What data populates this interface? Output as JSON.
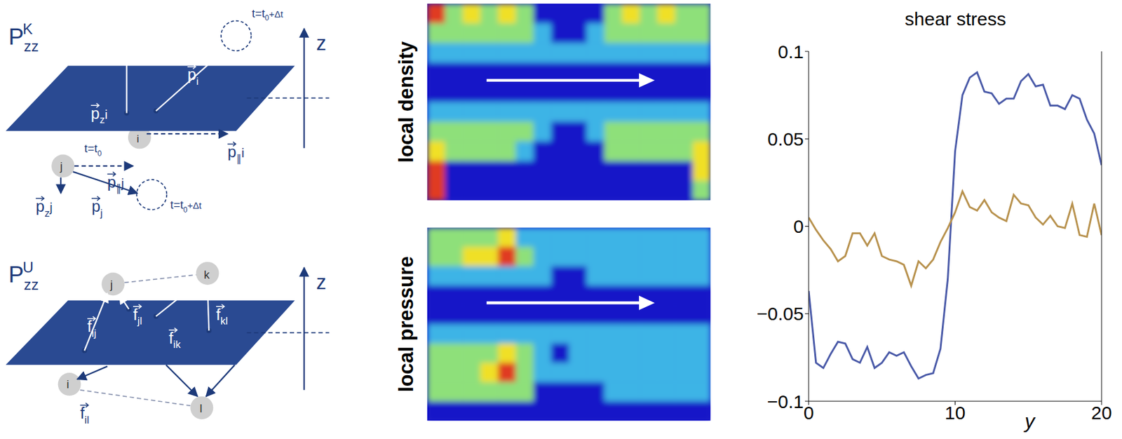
{
  "diagrams": [
    {
      "title": {
        "t": "P",
        "sup": "K",
        "sub": "zz"
      },
      "axis": "z",
      "labels": {
        "p_zi": {
          "t": "p",
          "sub": "z",
          "tail": "i"
        },
        "p_i": {
          "t": "p",
          "sub": "i"
        },
        "p_pi": {
          "t": "p",
          "sub": "∥",
          "tail": "i"
        },
        "p_pj": {
          "t": "p",
          "sub": "∥",
          "tail": "j"
        },
        "p_zj": {
          "t": "p",
          "sub": "z",
          "tail": "j"
        },
        "p_j": {
          "t": "p",
          "sub": "j"
        },
        "t0": {
          "t": "t=t",
          "sub": "0"
        },
        "t1i": {
          "t": "t=t",
          "sub": "0",
          "tail": "+Δt"
        },
        "t1j": {
          "t": "t=t",
          "sub": "0",
          "tail": "+Δt"
        },
        "i": {
          "t": "i"
        },
        "j": {
          "t": "j"
        }
      }
    },
    {
      "title": {
        "t": "P",
        "sup": "U",
        "sub": "zz"
      },
      "axis": "z",
      "labels": {
        "f_ij": {
          "t": "f",
          "sub": "ij"
        },
        "f_jl": {
          "t": "f",
          "sub": "jl"
        },
        "f_ik": {
          "t": "f",
          "sub": "ik"
        },
        "f_kl": {
          "t": "f",
          "sub": "kl"
        },
        "f_il": {
          "t": "f",
          "sub": "il"
        },
        "i": {
          "t": "i"
        },
        "j": {
          "t": "j"
        },
        "k": {
          "t": "k"
        },
        "l": {
          "t": "l"
        }
      }
    }
  ],
  "heatmap_colors": [
    "#1414c8",
    "#3cb4e6",
    "#8ee07a",
    "#f0e028",
    "#e03a20"
  ],
  "heatmaps": [
    {
      "label": "local density",
      "cells": [
        [
          4,
          2,
          3,
          2,
          3,
          2,
          0,
          0,
          0,
          0,
          2,
          3,
          2,
          3,
          2,
          2
        ],
        [
          2,
          2,
          2,
          2,
          2,
          2,
          1,
          0,
          0,
          1,
          2,
          2,
          2,
          2,
          2,
          2
        ],
        [
          1,
          1,
          1,
          1,
          1,
          1,
          1,
          1,
          1,
          1,
          1,
          1,
          1,
          1,
          1,
          1
        ],
        [
          0,
          0,
          0,
          0,
          0,
          0,
          0,
          0,
          0,
          0,
          0,
          0,
          0,
          0,
          0,
          0
        ],
        [
          0,
          0,
          0,
          0,
          0,
          0,
          0,
          0,
          0,
          0,
          0,
          0,
          0,
          0,
          0,
          0
        ],
        [
          1,
          1,
          1,
          1,
          1,
          1,
          1,
          1,
          1,
          1,
          1,
          1,
          1,
          1,
          1,
          1
        ],
        [
          2,
          2,
          2,
          2,
          2,
          2,
          1,
          0,
          0,
          1,
          2,
          2,
          2,
          2,
          2,
          2
        ],
        [
          3,
          2,
          2,
          2,
          2,
          1,
          0,
          0,
          0,
          0,
          2,
          2,
          2,
          2,
          2,
          3
        ],
        [
          4,
          0,
          0,
          0,
          0,
          0,
          0,
          0,
          0,
          0,
          0,
          0,
          0,
          0,
          0,
          3
        ],
        [
          4,
          0,
          0,
          0,
          0,
          0,
          0,
          0,
          0,
          0,
          0,
          0,
          0,
          0,
          0,
          2
        ]
      ]
    },
    {
      "label": "local pressure",
      "cells": [
        [
          2,
          2,
          2,
          2,
          3,
          1,
          1,
          1,
          1,
          1,
          1,
          1,
          1,
          1,
          1,
          1
        ],
        [
          2,
          2,
          3,
          3,
          4,
          2,
          1,
          1,
          1,
          1,
          1,
          1,
          1,
          1,
          1,
          1
        ],
        [
          1,
          1,
          1,
          1,
          1,
          1,
          1,
          0,
          0,
          1,
          1,
          1,
          1,
          1,
          1,
          1
        ],
        [
          0,
          0,
          0,
          0,
          0,
          0,
          0,
          0,
          0,
          0,
          0,
          0,
          0,
          0,
          0,
          0
        ],
        [
          0,
          0,
          0,
          0,
          0,
          0,
          0,
          0,
          0,
          0,
          0,
          0,
          0,
          0,
          0,
          0
        ],
        [
          1,
          1,
          1,
          1,
          1,
          1,
          1,
          1,
          1,
          1,
          1,
          1,
          1,
          1,
          1,
          1
        ],
        [
          2,
          2,
          2,
          2,
          3,
          2,
          1,
          0,
          1,
          1,
          1,
          1,
          1,
          1,
          1,
          1
        ],
        [
          2,
          2,
          2,
          3,
          4,
          2,
          1,
          1,
          1,
          1,
          1,
          1,
          1,
          1,
          1,
          1
        ],
        [
          2,
          2,
          2,
          2,
          2,
          2,
          0,
          0,
          0,
          0,
          1,
          1,
          1,
          1,
          1,
          1
        ],
        [
          0,
          0,
          0,
          0,
          0,
          0,
          0,
          0,
          0,
          0,
          0,
          0,
          0,
          0,
          0,
          0
        ]
      ]
    }
  ],
  "chart_data": {
    "type": "line",
    "title": "shear stress",
    "x_label": "y",
    "x": [
      0,
      0.5,
      1,
      1.5,
      2,
      2.5,
      3,
      3.5,
      4,
      4.5,
      5,
      5.5,
      6,
      6.5,
      7,
      7.5,
      8,
      8.5,
      9,
      9.5,
      10,
      10.5,
      11,
      11.5,
      12,
      12.5,
      13,
      13.5,
      14,
      14.5,
      15,
      15.5,
      16,
      16.5,
      17,
      17.5,
      18,
      18.5,
      19,
      19.5,
      20
    ],
    "series": [
      {
        "color": "#4a5aa8",
        "values": [
          -0.037,
          -0.078,
          -0.081,
          -0.073,
          -0.066,
          -0.067,
          -0.076,
          -0.078,
          -0.069,
          -0.081,
          -0.078,
          -0.072,
          -0.074,
          -0.072,
          -0.08,
          -0.087,
          -0.085,
          -0.084,
          -0.07,
          -0.03,
          0.043,
          0.075,
          0.085,
          0.088,
          0.077,
          0.076,
          0.07,
          0.073,
          0.073,
          0.083,
          0.087,
          0.08,
          0.081,
          0.069,
          0.069,
          0.067,
          0.075,
          0.073,
          0.061,
          0.053,
          0.035
        ]
      },
      {
        "color": "#b8924e",
        "values": [
          0.005,
          -0.002,
          -0.008,
          -0.013,
          -0.02,
          -0.017,
          -0.004,
          -0.004,
          -0.011,
          -0.004,
          -0.017,
          -0.019,
          -0.02,
          -0.022,
          -0.034,
          -0.02,
          -0.024,
          -0.019,
          -0.009,
          -0.001,
          0.008,
          0.02,
          0.011,
          0.009,
          0.015,
          0.008,
          0.005,
          0.003,
          0.018,
          0.013,
          0.012,
          0.005,
          0.001,
          0.006,
          0,
          -0.001,
          0.013,
          -0.005,
          -0.006,
          0.013,
          -0.005
        ]
      }
    ],
    "xlim": [
      0,
      20
    ],
    "xticks": [
      0,
      10,
      20
    ],
    "ylim": [
      -0.1,
      0.1
    ],
    "yticks": [
      {
        "value": -0.1,
        "label": "−0.1"
      },
      {
        "value": -0.05,
        "label": "−0.05"
      },
      0,
      0.05,
      0.1
    ],
    "grid": false
  }
}
